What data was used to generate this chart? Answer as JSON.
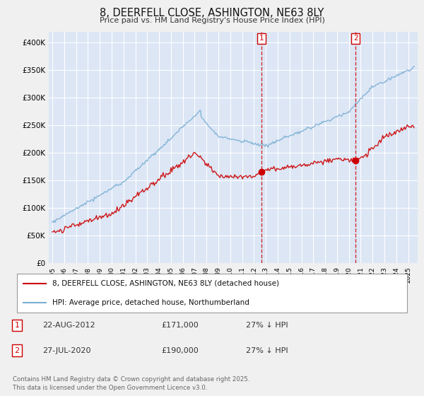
{
  "title": "8, DEERFELL CLOSE, ASHINGTON, NE63 8LY",
  "subtitle": "Price paid vs. HM Land Registry's House Price Index (HPI)",
  "ylabel_ticks": [
    "£0",
    "£50K",
    "£100K",
    "£150K",
    "£200K",
    "£250K",
    "£300K",
    "£350K",
    "£400K"
  ],
  "ytick_vals": [
    0,
    50000,
    100000,
    150000,
    200000,
    250000,
    300000,
    350000,
    400000
  ],
  "ylim": [
    0,
    420000
  ],
  "xlim_start": 1994.7,
  "xlim_end": 2025.8,
  "marker1_year": 2012.64,
  "marker2_year": 2020.57,
  "legend_line1": "8, DEERFELL CLOSE, ASHINGTON, NE63 8LY (detached house)",
  "legend_line2": "HPI: Average price, detached house, Northumberland",
  "table_row1": [
    "1",
    "22-AUG-2012",
    "£171,000",
    "27% ↓ HPI"
  ],
  "table_row2": [
    "2",
    "27-JUL-2020",
    "£190,000",
    "27% ↓ HPI"
  ],
  "footnote": "Contains HM Land Registry data © Crown copyright and database right 2025.\nThis data is licensed under the Open Government Licence v3.0.",
  "red_color": "#cc0000",
  "blue_color": "#7bafd4",
  "background_color": "#dce6f5",
  "grid_color": "#ffffff",
  "fig_bg_color": "#f0f0f0"
}
